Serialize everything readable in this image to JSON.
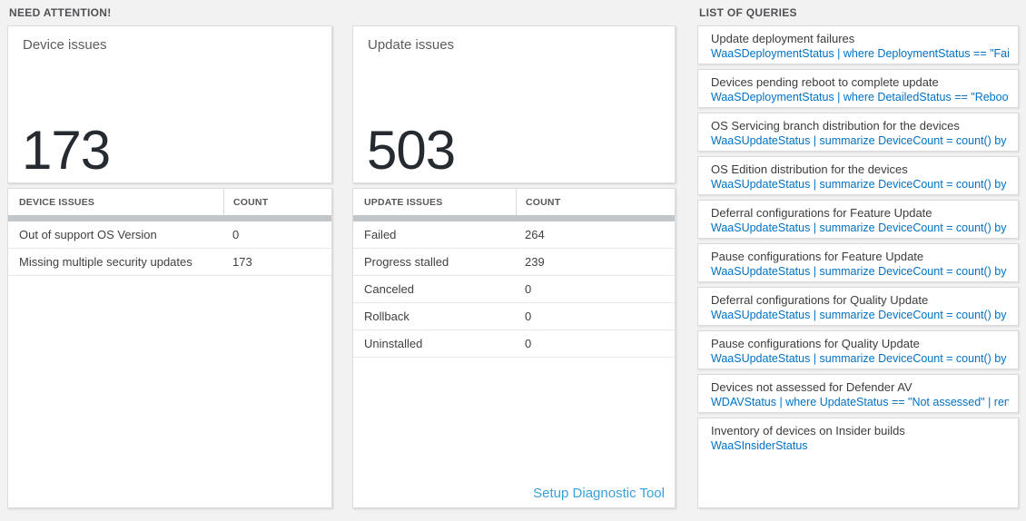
{
  "colors": {
    "page_background": "#f2f2f2",
    "card_background": "#ffffff",
    "big_number_text": "#252b31",
    "query_link_blue": "#0072c6",
    "setup_link_blue": "#3aa0da",
    "scrollbar_gray": "#c3c6c9"
  },
  "need_attention": {
    "title": "NEED ATTENTION!",
    "cards": [
      {
        "label": "Device issues",
        "big_number": "173",
        "table": {
          "headers": [
            "DEVICE ISSUES",
            "COUNT"
          ],
          "rows": [
            [
              "Out of support OS Version",
              "0"
            ],
            [
              "Missing multiple security updates",
              "173"
            ]
          ]
        }
      },
      {
        "label": "Update issues",
        "big_number": "503",
        "table": {
          "headers": [
            "UPDATE ISSUES",
            "COUNT"
          ],
          "rows": [
            [
              "Failed",
              "264"
            ],
            [
              "Progress stalled",
              "239"
            ],
            [
              "Canceled",
              "0"
            ],
            [
              "Rollback",
              "0"
            ],
            [
              "Uninstalled",
              "0"
            ]
          ]
        },
        "footer_link": "Setup Diagnostic Tool"
      }
    ]
  },
  "queries": {
    "title": "LIST OF QUERIES",
    "items": [
      {
        "title": "Update deployment failures",
        "query": "WaaSDeploymentStatus | where DeploymentStatus == \"Failed\" |..."
      },
      {
        "title": "Devices pending reboot to complete update",
        "query": "WaaSDeploymentStatus | where DetailedStatus == \"Reboot pend..."
      },
      {
        "title": "OS Servicing branch distribution for the devices",
        "query": "WaaSUpdateStatus | summarize DeviceCount = count() by OSSer..."
      },
      {
        "title": "OS Edition distribution for the devices",
        "query": "WaaSUpdateStatus | summarize DeviceCount = count() by OSEdit..."
      },
      {
        "title": "Deferral configurations for Feature Update",
        "query": "WaaSUpdateStatus | summarize DeviceCount = count() by Featur..."
      },
      {
        "title": "Pause configurations for Feature Update",
        "query": "WaaSUpdateStatus | summarize DeviceCount = count() by Featur..."
      },
      {
        "title": "Deferral configurations for Quality Update",
        "query": "WaaSUpdateStatus | summarize DeviceCount = count() by Qualit..."
      },
      {
        "title": "Pause configurations for Quality Update",
        "query": "WaaSUpdateStatus | summarize DeviceCount = count() by Qualit..."
      },
      {
        "title": "Devices not assessed for Defender AV",
        "query": "WDAVStatus | where UpdateStatus == \"Not assessed\" | render ta..."
      },
      {
        "title": "Inventory of devices on Insider builds",
        "query": "WaaSInsiderStatus"
      }
    ]
  }
}
